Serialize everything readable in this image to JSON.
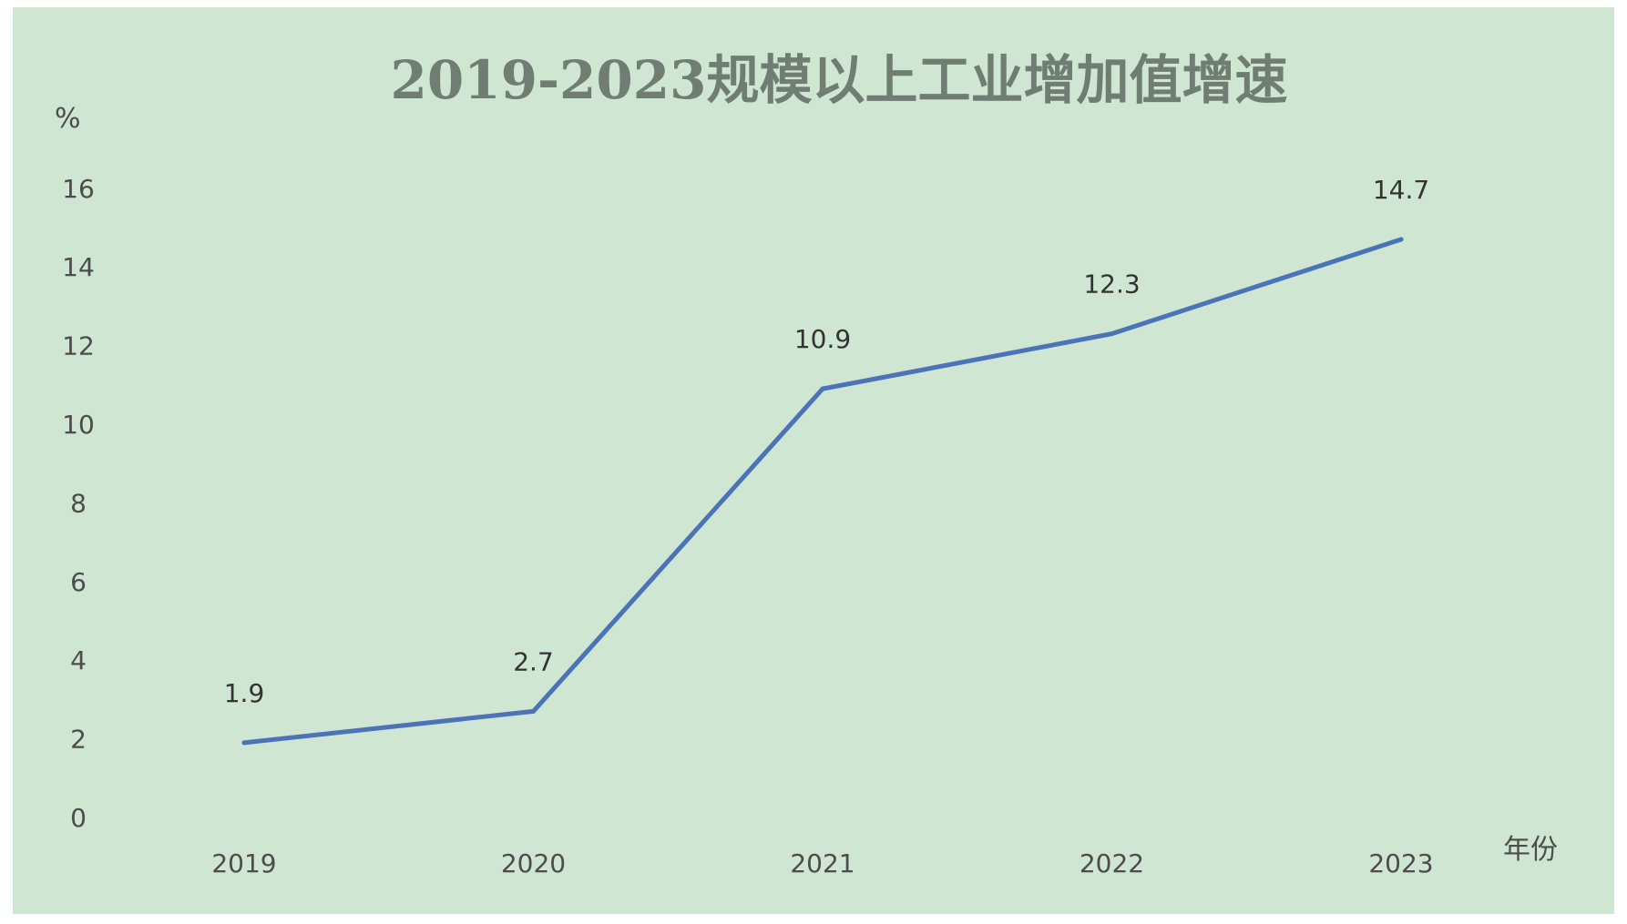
{
  "chart_data": {
    "type": "line",
    "title": "2019-2023规模以上工业增加值增速",
    "ylabel": "%",
    "xlabel": "年份",
    "categories": [
      "2019",
      "2020",
      "2021",
      "2022",
      "2023"
    ],
    "series": [
      {
        "values": [
          1.9,
          2.7,
          10.9,
          12.3,
          14.7
        ],
        "color": "#4a73b8"
      }
    ],
    "data_labels": [
      "1.9",
      "2.7",
      "10.9",
      "12.3",
      "14.7"
    ],
    "yticks": [
      0,
      2,
      4,
      6,
      8,
      10,
      12,
      14,
      16
    ],
    "ylim": [
      0,
      16
    ],
    "grid": false,
    "colors": {
      "background": "#cfe6d2",
      "line": "#4a73b8",
      "title": "#6f7d73",
      "text": "#4c4c4c"
    }
  }
}
